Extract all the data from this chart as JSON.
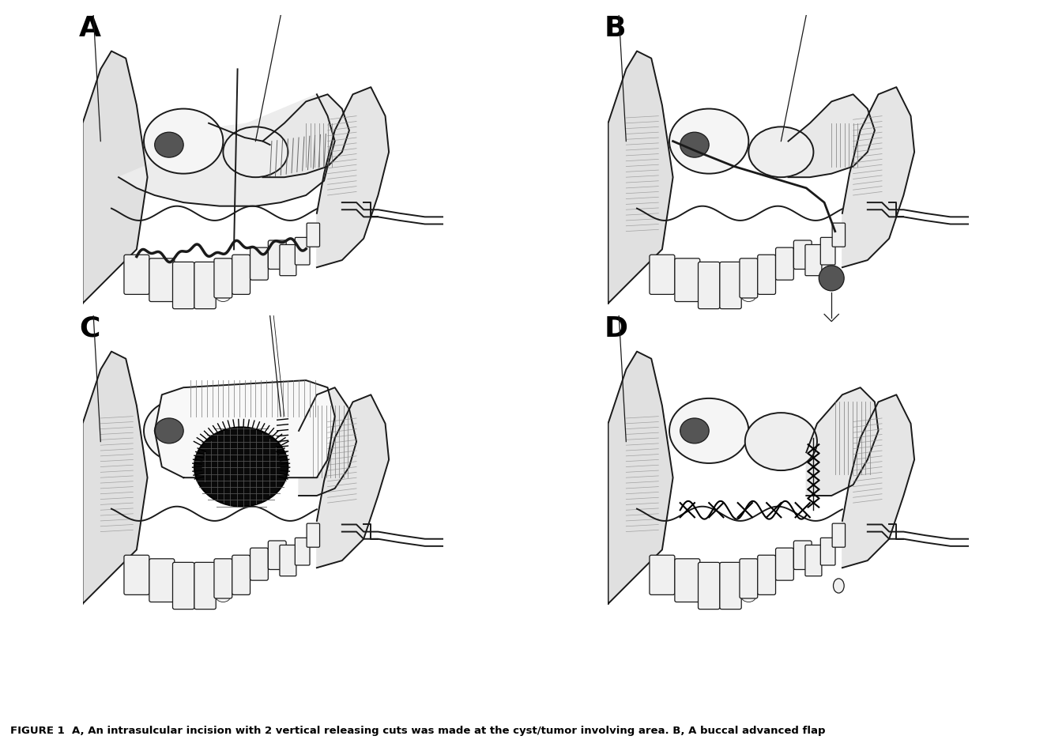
{
  "figure_background": "#ffffff",
  "panel_labels": [
    "A",
    "B",
    "C",
    "D"
  ],
  "panel_label_fontsize": 26,
  "panel_label_fontweight": "bold",
  "panel_label_color": "#000000",
  "caption_text": "FIGURE 1  A, An intrasulcular incision with 2 vertical releasing cuts was made at the cyst/tumor involving area. B, A buccal advanced flap",
  "caption_fontsize": 9.5,
  "caption_color": "#000000",
  "bg_white": "#ffffff",
  "line_dark": "#1a1a1a",
  "line_mid": "#555555",
  "line_light": "#999999",
  "shade_dark": "#555555",
  "shade_mid": "#888888",
  "shade_light": "#cccccc",
  "tissue_fill": "#e8e8e8",
  "tissue_fill2": "#d0d0d0",
  "tooth_fill": "#f0f0f0"
}
